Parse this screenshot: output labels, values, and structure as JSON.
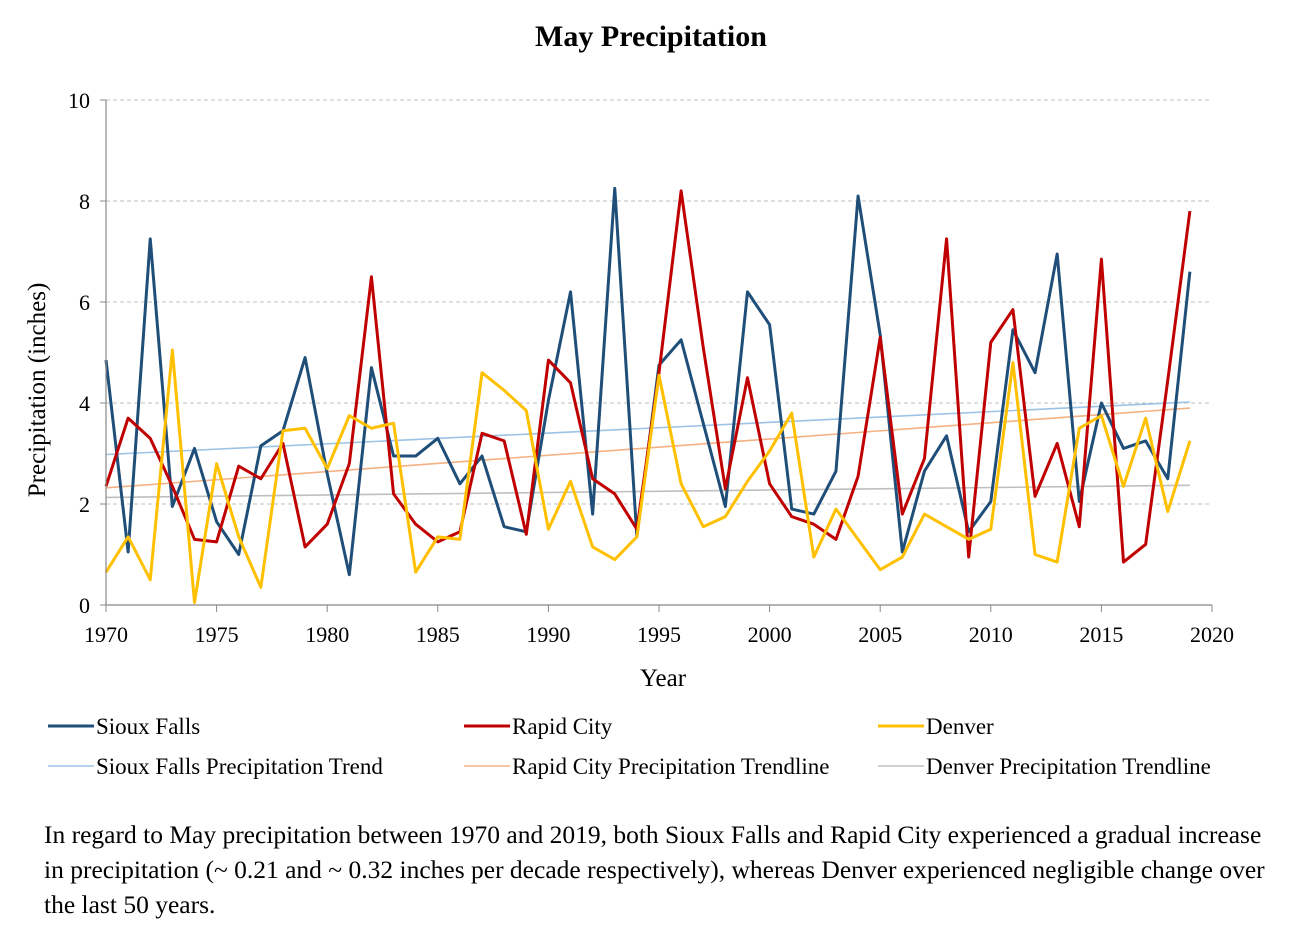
{
  "chart_data": {
    "type": "line",
    "title": "May Precipitation",
    "xlabel": "Year",
    "ylabel": "Precipitation (inches)",
    "xlim": [
      1970,
      2020
    ],
    "ylim": [
      0,
      10
    ],
    "x_ticks": [
      "1970",
      "1975",
      "1980",
      "1985",
      "1990",
      "1995",
      "2000",
      "2005",
      "2010",
      "2015",
      "2020"
    ],
    "y_ticks": [
      "0",
      "2",
      "4",
      "6",
      "8",
      "10"
    ],
    "grid": "horizontal dashed",
    "legend_position": "bottom",
    "x": [
      1970,
      1971,
      1972,
      1973,
      1974,
      1975,
      1976,
      1977,
      1978,
      1979,
      1980,
      1981,
      1982,
      1983,
      1984,
      1985,
      1986,
      1987,
      1988,
      1989,
      1990,
      1991,
      1992,
      1993,
      1994,
      1995,
      1996,
      1997,
      1998,
      1999,
      2000,
      2001,
      2002,
      2003,
      2004,
      2005,
      2006,
      2007,
      2008,
      2009,
      2010,
      2011,
      2012,
      2013,
      2014,
      2015,
      2016,
      2017,
      2018,
      2019
    ],
    "series": [
      {
        "name": "Sioux Falls",
        "color": "#1f4e79",
        "width": 3,
        "values": [
          4.85,
          1.05,
          7.25,
          1.95,
          3.1,
          1.65,
          1.0,
          3.15,
          3.45,
          4.9,
          2.6,
          0.6,
          4.7,
          2.95,
          2.95,
          3.3,
          2.4,
          2.95,
          1.55,
          1.45,
          4.05,
          6.2,
          1.8,
          8.25,
          1.35,
          4.75,
          5.25,
          3.6,
          1.95,
          6.2,
          5.55,
          1.9,
          1.8,
          2.65,
          8.1,
          5.35,
          1.05,
          2.65,
          3.35,
          1.45,
          2.05,
          5.45,
          4.6,
          6.95,
          2.05,
          4.0,
          3.1,
          3.25,
          2.5,
          6.6
        ]
      },
      {
        "name": "Rapid City",
        "color": "#c00000",
        "width": 3,
        "values": [
          2.35,
          3.7,
          3.3,
          2.35,
          1.3,
          1.25,
          2.75,
          2.5,
          3.2,
          1.15,
          1.6,
          2.8,
          6.5,
          2.2,
          1.6,
          1.25,
          1.45,
          3.4,
          3.25,
          1.4,
          4.85,
          4.4,
          2.5,
          2.2,
          1.5,
          4.6,
          8.2,
          5.1,
          2.3,
          4.5,
          2.4,
          1.75,
          1.6,
          1.3,
          2.55,
          5.3,
          1.8,
          2.9,
          7.25,
          0.95,
          5.2,
          5.85,
          2.15,
          3.2,
          1.55,
          6.85,
          0.85,
          1.2,
          4.45,
          7.8
        ]
      },
      {
        "name": "Denver",
        "color": "#ffc000",
        "width": 3,
        "values": [
          0.65,
          1.35,
          0.5,
          5.05,
          0.05,
          2.8,
          1.35,
          0.35,
          3.45,
          3.5,
          2.7,
          3.75,
          3.5,
          3.6,
          0.65,
          1.35,
          1.3,
          4.6,
          4.25,
          3.85,
          1.5,
          2.45,
          1.15,
          0.9,
          1.35,
          4.55,
          2.4,
          1.55,
          1.75,
          2.45,
          3.05,
          3.8,
          0.95,
          1.9,
          1.3,
          0.7,
          0.95,
          1.8,
          1.55,
          1.3,
          1.5,
          4.8,
          1.0,
          0.85,
          3.5,
          3.75,
          2.35,
          3.7,
          1.85,
          3.25
        ]
      },
      {
        "name": "Sioux Falls Precipitation Trend",
        "color": "#9dc3e6",
        "width": 1.6,
        "trend": true,
        "values_at_xlim_data": [
          2.98,
          4.02
        ]
      },
      {
        "name": "Rapid City Precipitation Trendline",
        "color": "#f4b183",
        "width": 1.6,
        "trend": true,
        "values_at_xlim_data": [
          2.32,
          3.9
        ]
      },
      {
        "name": "Denver Precipitation Trendline",
        "color": "#bfbfbf",
        "width": 1.6,
        "trend": true,
        "values_at_xlim_data": [
          2.13,
          2.37
        ]
      }
    ]
  },
  "caption": "In regard to May precipitation between 1970 and 2019, both Sioux Falls and Rapid City experienced a gradual increase in precipitation (~ 0.21 and ~ 0.32 inches per decade respectively), whereas Denver experienced negligible change over the last 50 years."
}
